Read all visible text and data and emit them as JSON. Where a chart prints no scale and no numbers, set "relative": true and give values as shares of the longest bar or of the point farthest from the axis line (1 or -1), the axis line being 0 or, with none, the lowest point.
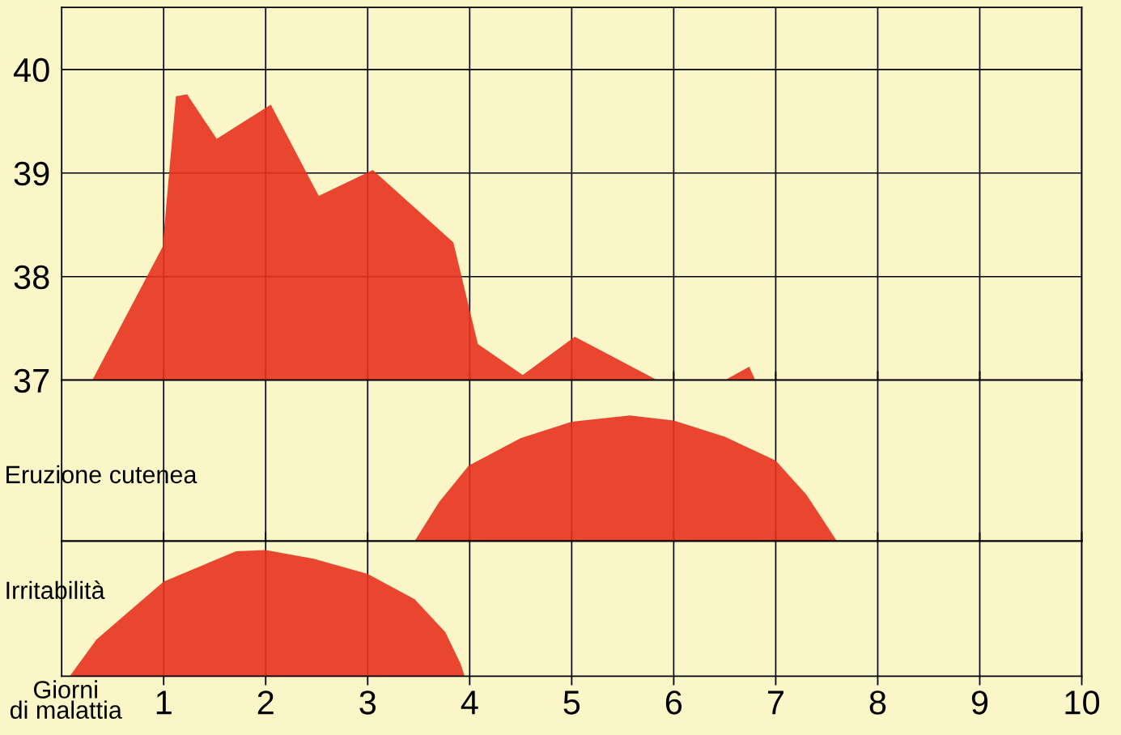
{
  "chart_data": [
    {
      "type": "area",
      "xlim": [
        0,
        10
      ],
      "xticks": [
        {
          "value": 1,
          "label": null
        },
        {
          "value": 2,
          "label": null
        },
        {
          "value": 3,
          "label": null
        },
        {
          "value": 4,
          "label": null
        },
        {
          "value": 5,
          "label": null
        },
        {
          "value": 6,
          "label": null
        },
        {
          "value": 7,
          "label": null
        },
        {
          "value": 8,
          "label": null
        },
        {
          "value": 9,
          "label": null
        },
        {
          "value": 10,
          "label": null
        }
      ],
      "ylim": [
        37,
        40.6
      ],
      "yticks": [
        37,
        38,
        39,
        40
      ],
      "grid": true,
      "tick_labels": "y",
      "series": [
        {
          "color": "#e8321e",
          "x": [
            0.3,
            0.99,
            1.12,
            1.23,
            1.52,
            2.05,
            2.52,
            3.05,
            3.84,
            4.08,
            4.52,
            5.03,
            5.84,
            6.5,
            6.74,
            6.8
          ],
          "values": [
            37.0,
            38.29,
            39.74,
            39.76,
            39.33,
            39.66,
            38.78,
            39.03,
            38.33,
            37.35,
            37.05,
            37.42,
            37.0,
            37.0,
            37.13,
            37.0
          ]
        }
      ]
    },
    {
      "type": "area",
      "relative": true,
      "xlim": [
        0,
        10
      ],
      "xticks": [
        {
          "value": 1,
          "label": null
        },
        {
          "value": 2,
          "label": null
        },
        {
          "value": 3,
          "label": null
        },
        {
          "value": 4,
          "label": null
        },
        {
          "value": 5,
          "label": null
        },
        {
          "value": 6,
          "label": null
        },
        {
          "value": 7,
          "label": null
        },
        {
          "value": 8,
          "label": null
        },
        {
          "value": 9,
          "label": null
        },
        {
          "value": 10,
          "label": null
        }
      ],
      "grid": "x",
      "tick_labels": false,
      "series": [
        {
          "name": "Eruzione cutenea",
          "color": "#e8321e",
          "x": [
            3.46,
            3.7,
            3.99,
            4.5,
            5.0,
            5.57,
            6.0,
            6.5,
            7.0,
            7.3,
            7.6
          ],
          "values": [
            0,
            0.31,
            0.6,
            0.82,
            0.95,
            1.0,
            0.96,
            0.83,
            0.64,
            0.37,
            0
          ]
        }
      ]
    },
    {
      "type": "area",
      "relative": true,
      "xlim": [
        0,
        10
      ],
      "xticks": [
        1,
        2,
        3,
        4,
        5,
        6,
        7,
        8,
        9,
        10
      ],
      "grid": "x",
      "tick_labels": "x",
      "xlabel": "Giorni\ndi malattia",
      "series": [
        {
          "name": "Irritabilità",
          "color": "#e8321e",
          "x": [
            0.08,
            0.34,
            1.0,
            1.71,
            2.0,
            2.47,
            3.0,
            3.46,
            3.76,
            3.91,
            3.95
          ],
          "values": [
            0,
            0.29,
            0.75,
            0.99,
            1.0,
            0.93,
            0.81,
            0.61,
            0.35,
            0.1,
            0
          ]
        }
      ]
    }
  ]
}
